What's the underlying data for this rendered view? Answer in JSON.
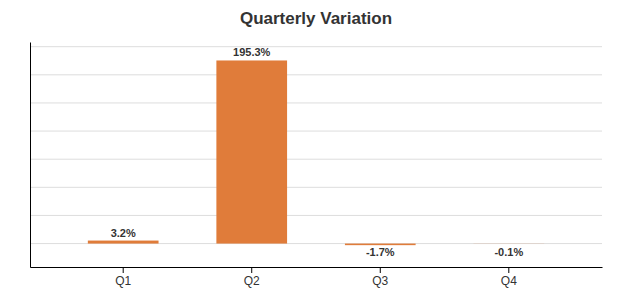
{
  "chart_data": {
    "type": "bar",
    "title": "Quarterly Variation",
    "categories": [
      "Q1",
      "Q2",
      "Q3",
      "Q4"
    ],
    "values": [
      3.2,
      195.3,
      -1.7,
      -0.1
    ],
    "value_labels": [
      "3.2%",
      "195.3%",
      "-1.7%",
      "-0.1%"
    ],
    "color": "#E07C3A",
    "ylim": [
      -25,
      215
    ],
    "yticks": [
      0,
      30,
      60,
      90,
      120,
      150,
      180,
      210
    ],
    "grid": true,
    "data_labels": true,
    "tick_labels": "x"
  }
}
